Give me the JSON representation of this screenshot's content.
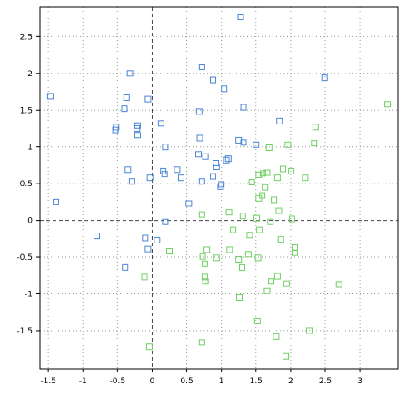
{
  "chart_data": {
    "type": "scatter",
    "title": "",
    "xlabel": "",
    "ylabel": "",
    "xlim": [
      -1.62,
      3.55
    ],
    "ylim": [
      -2.02,
      2.9
    ],
    "grid": true,
    "x_ticks": [
      {
        "value": -1.5,
        "label": "-1.5"
      },
      {
        "value": -1,
        "label": "-1"
      },
      {
        "value": -0.5,
        "label": "-0.5"
      },
      {
        "value": 0,
        "label": "0"
      },
      {
        "value": 0.5,
        "label": "0.5"
      },
      {
        "value": 1,
        "label": "1"
      },
      {
        "value": 1.5,
        "label": "1.5"
      },
      {
        "value": 2,
        "label": "2"
      },
      {
        "value": 2.5,
        "label": "2.5"
      },
      {
        "value": 3,
        "label": "3"
      }
    ],
    "y_ticks": [
      {
        "value": -1.5,
        "label": "-1.5"
      },
      {
        "value": -1,
        "label": "-1"
      },
      {
        "value": -0.5,
        "label": "-0.5"
      },
      {
        "value": 0,
        "label": "0"
      },
      {
        "value": 0.5,
        "label": "0.5"
      },
      {
        "value": 1,
        "label": "1"
      },
      {
        "value": 1.5,
        "label": "1.5"
      },
      {
        "value": 2,
        "label": "2"
      },
      {
        "value": 2.5,
        "label": "2.5"
      }
    ],
    "series": [
      {
        "color": "#4a86d6",
        "marker": "square",
        "points": [
          [
            1.28,
            2.77
          ],
          [
            0.72,
            2.09
          ],
          [
            -0.32,
            2.0
          ],
          [
            0.88,
            1.91
          ],
          [
            2.49,
            1.94
          ],
          [
            1.04,
            1.79
          ],
          [
            -1.47,
            1.69
          ],
          [
            -0.37,
            1.67
          ],
          [
            -0.06,
            1.65
          ],
          [
            -0.4,
            1.52
          ],
          [
            1.32,
            1.54
          ],
          [
            0.68,
            1.48
          ],
          [
            1.84,
            1.35
          ],
          [
            -0.52,
            1.27
          ],
          [
            -0.21,
            1.29
          ],
          [
            0.13,
            1.32
          ],
          [
            -0.53,
            1.23
          ],
          [
            -0.22,
            1.25
          ],
          [
            -0.21,
            1.16
          ],
          [
            0.69,
            1.12
          ],
          [
            1.25,
            1.09
          ],
          [
            1.32,
            1.06
          ],
          [
            1.5,
            1.03
          ],
          [
            0.19,
            1.0
          ],
          [
            0.67,
            0.9
          ],
          [
            0.77,
            0.87
          ],
          [
            1.1,
            0.84
          ],
          [
            1.07,
            0.82
          ],
          [
            0.92,
            0.78
          ],
          [
            0.93,
            0.73
          ],
          [
            -0.35,
            0.69
          ],
          [
            0.36,
            0.69
          ],
          [
            0.16,
            0.67
          ],
          [
            0.18,
            0.63
          ],
          [
            -0.29,
            0.53
          ],
          [
            -0.03,
            0.58
          ],
          [
            0.42,
            0.58
          ],
          [
            0.88,
            0.6
          ],
          [
            0.72,
            0.53
          ],
          [
            1.0,
            0.49
          ],
          [
            0.99,
            0.46
          ],
          [
            0.53,
            0.23
          ],
          [
            -1.39,
            0.25
          ],
          [
            0.19,
            -0.02
          ],
          [
            -0.8,
            -0.21
          ],
          [
            -0.1,
            -0.24
          ],
          [
            0.07,
            -0.27
          ],
          [
            -0.06,
            -0.39
          ],
          [
            -0.39,
            -0.64
          ]
        ]
      },
      {
        "color": "#6fcf63",
        "marker": "square",
        "points": [
          [
            3.4,
            1.58
          ],
          [
            2.36,
            1.27
          ],
          [
            2.34,
            1.05
          ],
          [
            1.96,
            1.03
          ],
          [
            1.69,
            0.99
          ],
          [
            1.89,
            0.7
          ],
          [
            2.01,
            0.67
          ],
          [
            1.66,
            0.65
          ],
          [
            1.6,
            0.64
          ],
          [
            1.54,
            0.62
          ],
          [
            1.81,
            0.58
          ],
          [
            2.21,
            0.58
          ],
          [
            1.44,
            0.52
          ],
          [
            1.63,
            0.45
          ],
          [
            1.59,
            0.34
          ],
          [
            1.54,
            0.3
          ],
          [
            1.76,
            0.28
          ],
          [
            1.83,
            0.13
          ],
          [
            1.11,
            0.11
          ],
          [
            1.31,
            0.06
          ],
          [
            0.72,
            0.08
          ],
          [
            1.51,
            0.03
          ],
          [
            2.02,
            0.02
          ],
          [
            1.71,
            -0.02
          ],
          [
            1.17,
            -0.13
          ],
          [
            1.55,
            -0.13
          ],
          [
            1.41,
            -0.2
          ],
          [
            1.86,
            -0.26
          ],
          [
            2.06,
            -0.37
          ],
          [
            1.12,
            -0.4
          ],
          [
            0.79,
            -0.4
          ],
          [
            0.25,
            -0.42
          ],
          [
            1.39,
            -0.46
          ],
          [
            2.06,
            -0.44
          ],
          [
            1.53,
            -0.51
          ],
          [
            0.73,
            -0.49
          ],
          [
            0.93,
            -0.51
          ],
          [
            1.25,
            -0.53
          ],
          [
            0.76,
            -0.59
          ],
          [
            1.3,
            -0.64
          ],
          [
            -0.11,
            -0.77
          ],
          [
            0.76,
            -0.77
          ],
          [
            1.81,
            -0.76
          ],
          [
            1.72,
            -0.83
          ],
          [
            0.77,
            -0.83
          ],
          [
            2.7,
            -0.87
          ],
          [
            1.94,
            -0.86
          ],
          [
            1.66,
            -0.96
          ],
          [
            1.26,
            -1.05
          ],
          [
            1.52,
            -1.37
          ],
          [
            2.27,
            -1.5
          ],
          [
            1.79,
            -1.58
          ],
          [
            0.72,
            -1.66
          ],
          [
            -0.04,
            -1.72
          ],
          [
            1.93,
            -1.85
          ]
        ]
      }
    ]
  }
}
